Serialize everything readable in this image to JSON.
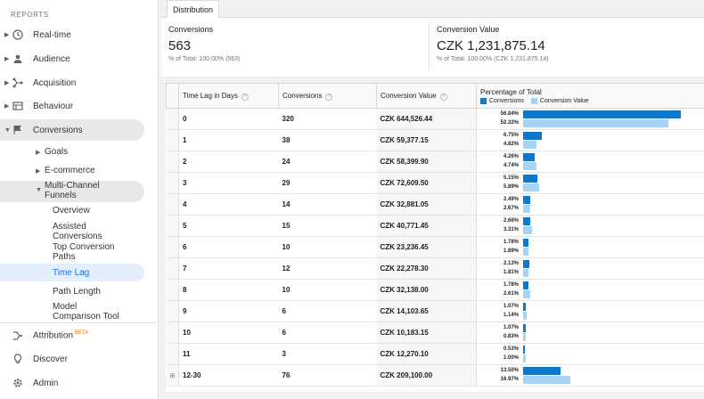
{
  "sidebar": {
    "reports_label": "REPORTS",
    "items": [
      {
        "label": "Real-time",
        "icon": "clock-icon"
      },
      {
        "label": "Audience",
        "icon": "person-icon"
      },
      {
        "label": "Acquisition",
        "icon": "acquisition-icon"
      },
      {
        "label": "Behaviour",
        "icon": "behaviour-icon"
      },
      {
        "label": "Conversions",
        "icon": "flag-icon"
      }
    ],
    "conversions_sub": {
      "goals": "Goals",
      "ecommerce": "E-commerce",
      "mcf_line1": "Multi-Channel",
      "mcf_line2": "Funnels",
      "overview": "Overview",
      "assisted_line1": "Assisted",
      "assisted_line2": "Conversions",
      "top_paths_line1": "Top Conversion",
      "top_paths_line2": "Paths",
      "time_lag": "Time Lag",
      "path_length": "Path Length",
      "model_line1": "Model",
      "model_line2": "Comparison Tool"
    },
    "attribution": "Attribution",
    "attribution_badge": "BETA",
    "discover": "Discover",
    "admin": "Admin"
  },
  "tab": {
    "label": "Distribution"
  },
  "summary": {
    "conversions": {
      "label": "Conversions",
      "value": "563",
      "sub": "% of Total: 100.00% (563)"
    },
    "conversion_value": {
      "label": "Conversion Value",
      "value": "CZK 1,231,875.14",
      "sub": "% of Total: 100.00% (CZK 1,231,875.14)"
    }
  },
  "table": {
    "headers": {
      "lag": "Time Lag in Days",
      "conversions": "Conversions",
      "value": "Conversion Value",
      "pct": "Percentage of Total"
    },
    "legend": {
      "conversions": "Conversions",
      "value": "Conversion Value"
    },
    "colors": {
      "conversions": "#1177c9",
      "value": "#a8d3f5"
    },
    "rows": [
      {
        "lag": "0",
        "conversions": "320",
        "value": "CZK 644,526.44",
        "pct_conv": "56.84%",
        "pct_val": "52.32%",
        "conv_frac": 0.5684,
        "val_frac": 0.5232
      },
      {
        "lag": "1",
        "conversions": "38",
        "value": "CZK 59,377.15",
        "pct_conv": "6.75%",
        "pct_val": "4.82%",
        "conv_frac": 0.0675,
        "val_frac": 0.0482
      },
      {
        "lag": "2",
        "conversions": "24",
        "value": "CZK 58,399.90",
        "pct_conv": "4.26%",
        "pct_val": "4.74%",
        "conv_frac": 0.0426,
        "val_frac": 0.0474
      },
      {
        "lag": "3",
        "conversions": "29",
        "value": "CZK 72,609.50",
        "pct_conv": "5.15%",
        "pct_val": "5.89%",
        "conv_frac": 0.0515,
        "val_frac": 0.0589
      },
      {
        "lag": "4",
        "conversions": "14",
        "value": "CZK 32,881.05",
        "pct_conv": "2.49%",
        "pct_val": "2.67%",
        "conv_frac": 0.0249,
        "val_frac": 0.0267
      },
      {
        "lag": "5",
        "conversions": "15",
        "value": "CZK 40,771.45",
        "pct_conv": "2.66%",
        "pct_val": "3.31%",
        "conv_frac": 0.0266,
        "val_frac": 0.0331
      },
      {
        "lag": "6",
        "conversions": "10",
        "value": "CZK 23,236.45",
        "pct_conv": "1.78%",
        "pct_val": "1.89%",
        "conv_frac": 0.0178,
        "val_frac": 0.0189
      },
      {
        "lag": "7",
        "conversions": "12",
        "value": "CZK 22,278.30",
        "pct_conv": "2.13%",
        "pct_val": "1.81%",
        "conv_frac": 0.0213,
        "val_frac": 0.0181
      },
      {
        "lag": "8",
        "conversions": "10",
        "value": "CZK 32,138.00",
        "pct_conv": "1.78%",
        "pct_val": "2.61%",
        "conv_frac": 0.0178,
        "val_frac": 0.0261
      },
      {
        "lag": "9",
        "conversions": "6",
        "value": "CZK 14,103.65",
        "pct_conv": "1.07%",
        "pct_val": "1.14%",
        "conv_frac": 0.0107,
        "val_frac": 0.0114
      },
      {
        "lag": "10",
        "conversions": "6",
        "value": "CZK 10,183.15",
        "pct_conv": "1.07%",
        "pct_val": "0.83%",
        "conv_frac": 0.0107,
        "val_frac": 0.0083
      },
      {
        "lag": "11",
        "conversions": "3",
        "value": "CZK 12,270.10",
        "pct_conv": "0.53%",
        "pct_val": "1.00%",
        "conv_frac": 0.0053,
        "val_frac": 0.01
      },
      {
        "lag": "12-30",
        "conversions": "76",
        "value": "CZK 209,100.00",
        "pct_conv": "13.50%",
        "pct_val": "16.97%",
        "conv_frac": 0.135,
        "val_frac": 0.1697,
        "expandable": true
      }
    ]
  }
}
